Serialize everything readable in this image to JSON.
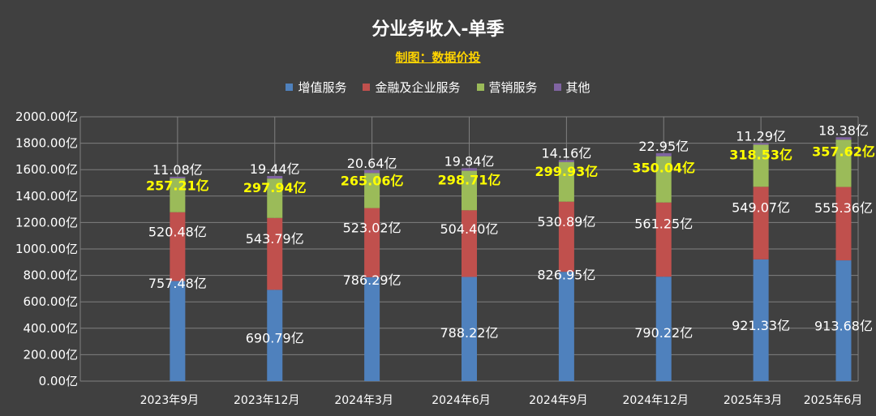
{
  "chart_data": {
    "type": "bar",
    "stacked": true,
    "title": "分业务收入-单季",
    "subtitle": "制图：数据价投",
    "categories": [
      "2023年9月",
      "2023年12月",
      "2024年3月",
      "2024年6月",
      "2024年9月",
      "2024年12月",
      "2025年3月",
      "2025年6月"
    ],
    "series": [
      {
        "name": "增值服务",
        "color": "#4f81bd",
        "label_color": "#ffffff",
        "values": [
          757.48,
          690.79,
          786.29,
          788.22,
          826.95,
          790.22,
          921.33,
          913.68
        ],
        "labels": [
          "757.48亿",
          "690.79亿",
          "786.29亿",
          "788.22亿",
          "826.95亿",
          "790.22亿",
          "921.33亿",
          "913.68亿"
        ]
      },
      {
        "name": "金融及企业服务",
        "color": "#c0504d",
        "label_color": "#ffffff",
        "values": [
          520.48,
          543.79,
          523.02,
          504.4,
          530.89,
          561.25,
          549.07,
          555.36
        ],
        "labels": [
          "520.48亿",
          "543.79亿",
          "523.02亿",
          "504.40亿",
          "530.89亿",
          "561.25亿",
          "549.07亿",
          "555.36亿"
        ]
      },
      {
        "name": "营销服务",
        "color": "#9bbb59",
        "label_color": "#ffff00",
        "values": [
          257.21,
          297.94,
          265.06,
          298.71,
          299.93,
          350.04,
          318.53,
          357.62
        ],
        "labels": [
          "257.21亿",
          "297.94亿",
          "265.06亿",
          "298.71亿",
          "299.93亿",
          "350.04亿",
          "318.53亿",
          "357.62亿"
        ]
      },
      {
        "name": "其他",
        "color": "#8064a2",
        "label_color": "#ffffff",
        "values": [
          11.08,
          19.44,
          20.64,
          19.84,
          14.16,
          22.95,
          11.29,
          18.38
        ],
        "labels": [
          "11.08亿",
          "19.44亿",
          "20.64亿",
          "19.84亿",
          "14.16亿",
          "22.95亿",
          "11.29亿",
          "18.38亿"
        ]
      }
    ],
    "ylim": [
      0,
      2000
    ],
    "yticks": [
      0,
      200,
      400,
      600,
      800,
      1000,
      1200,
      1400,
      1600,
      1800,
      2000
    ],
    "ytick_labels": [
      "0.00亿",
      "200.00亿",
      "400.00亿",
      "600.00亿",
      "800.00亿",
      "1000.00亿",
      "1200.00亿",
      "1400.00亿",
      "1600.00亿",
      "1800.00亿",
      "2000.00亿"
    ],
    "xlabel": "",
    "ylabel": "",
    "grid": true,
    "legend_position": "top",
    "background_color": "#404040",
    "grid_color": "#7f7f7f"
  }
}
